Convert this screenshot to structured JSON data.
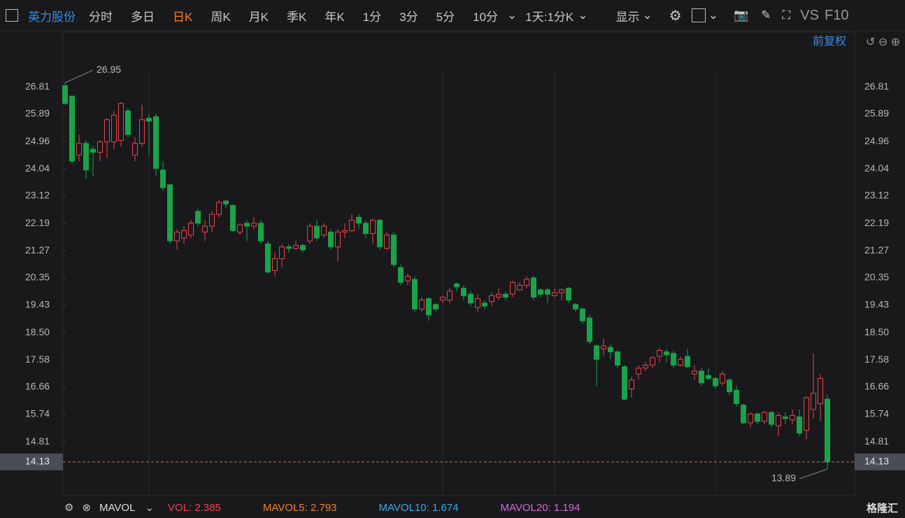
{
  "toolbar": {
    "stock": "英力股份",
    "tabs": [
      "分时",
      "多日",
      "日K",
      "周K",
      "月K",
      "季K",
      "年K",
      "1分",
      "3分",
      "5分",
      "10分"
    ],
    "active_tab": 2,
    "period": "1天:1分K",
    "display": "显示",
    "vs": "VS",
    "f10": "F10"
  },
  "adjust": "前复权",
  "indicator_bar": {
    "name": "MAVOL",
    "items": [
      {
        "text": "VOL: 2.385",
        "color": "#e8454a"
      },
      {
        "text": "MAVOL5: 2.793",
        "color": "#f0812b"
      },
      {
        "text": "MAVOL10: 1.674",
        "color": "#3aa8e6"
      },
      {
        "text": "MAVOL20: 1.194",
        "color": "#d36ad6"
      }
    ]
  },
  "logo": "格隆汇",
  "chart_data": {
    "type": "candlestick",
    "open": [
      26.85,
      26.5,
      24.5,
      24.9,
      24.7,
      24.6,
      24.95,
      24.95,
      25.0,
      26.0,
      24.5,
      24.9,
      25.75,
      25.8,
      24.0,
      23.5,
      21.6,
      21.7,
      21.8,
      22.6,
      21.9,
      22.1,
      22.5,
      22.95,
      22.8,
      21.9,
      22.2,
      22.1,
      22.2,
      21.5,
      20.6,
      21.0,
      21.4,
      21.35,
      21.45,
      21.6,
      22.1,
      21.8,
      21.9,
      21.4,
      21.9,
      21.95,
      22.4,
      22.2,
      21.85,
      22.3,
      21.35,
      21.8,
      20.7,
      20.25,
      20.3,
      19.3,
      19.65,
      19.45,
      19.6,
      19.6,
      20.15,
      20.0,
      19.8,
      19.35,
      19.5,
      19.55,
      19.7,
      19.8,
      19.8,
      19.95,
      20.1,
      20.35,
      19.95,
      19.95,
      19.75,
      19.85,
      20.0,
      19.45,
      19.3,
      19.0,
      18.05,
      17.95,
      18.0,
      17.85,
      17.35,
      16.6,
      17.1,
      17.3,
      17.4,
      17.7,
      17.85,
      17.8,
      17.4,
      17.7,
      17.1,
      17.2,
      17.05,
      16.95,
      16.8,
      16.9,
      16.55,
      16.05,
      15.45,
      15.75,
      15.5,
      15.8,
      15.35,
      15.65,
      15.55,
      15.65,
      15.2,
      15.9,
      16.1,
      16.25
    ],
    "high": [
      26.95,
      26.5,
      25.2,
      25.0,
      24.8,
      25.0,
      25.75,
      26.0,
      26.3,
      26.1,
      25.1,
      26.2,
      25.9,
      25.9,
      24.3,
      23.5,
      22.0,
      22.1,
      22.3,
      22.7,
      22.3,
      22.6,
      23.0,
      23.0,
      22.85,
      22.2,
      22.3,
      22.4,
      22.3,
      21.6,
      21.2,
      21.5,
      21.5,
      21.6,
      21.5,
      22.2,
      22.3,
      22.2,
      22.0,
      22.0,
      22.2,
      22.5,
      22.5,
      22.3,
      22.35,
      22.35,
      21.9,
      21.9,
      20.8,
      20.5,
      20.4,
      19.7,
      19.7,
      19.5,
      19.75,
      20.0,
      20.2,
      20.1,
      19.9,
      19.8,
      19.6,
      19.85,
      20.0,
      19.9,
      20.25,
      20.2,
      20.4,
      20.4,
      20.0,
      20.0,
      20.0,
      20.0,
      20.05,
      19.5,
      19.35,
      19.1,
      18.1,
      18.3,
      18.1,
      17.9,
      17.4,
      17.0,
      17.4,
      17.5,
      17.7,
      18.0,
      17.95,
      17.9,
      17.7,
      17.95,
      17.4,
      17.3,
      17.3,
      17.0,
      17.2,
      16.95,
      16.7,
      16.1,
      15.8,
      15.8,
      15.85,
      15.85,
      15.8,
      15.8,
      15.9,
      15.9,
      16.35,
      17.8,
      17.1,
      16.4
    ],
    "low": [
      26.2,
      24.2,
      24.3,
      23.7,
      23.8,
      24.3,
      24.4,
      24.7,
      24.8,
      25.1,
      24.3,
      24.8,
      24.5,
      23.8,
      23.3,
      21.5,
      21.3,
      21.5,
      21.7,
      22.1,
      21.6,
      21.9,
      22.4,
      22.7,
      21.9,
      21.8,
      21.6,
      22.0,
      21.5,
      20.5,
      20.4,
      20.7,
      21.2,
      21.3,
      21.2,
      21.5,
      21.6,
      21.7,
      21.3,
      20.9,
      21.7,
      21.9,
      22.0,
      21.7,
      21.5,
      21.3,
      21.3,
      20.7,
      20.1,
      20.1,
      19.2,
      19.2,
      18.9,
      19.2,
      19.5,
      19.5,
      19.9,
      19.6,
      19.4,
      19.2,
      19.3,
      19.4,
      19.6,
      19.6,
      19.7,
      19.9,
      20.0,
      19.6,
      19.7,
      19.5,
      19.7,
      19.6,
      19.5,
      19.2,
      18.8,
      18.1,
      16.7,
      17.7,
      17.6,
      17.3,
      16.2,
      16.3,
      16.9,
      17.2,
      17.3,
      17.5,
      17.5,
      17.3,
      17.35,
      17.3,
      16.9,
      16.7,
      16.9,
      16.6,
      16.7,
      16.4,
      16.0,
      15.4,
      15.3,
      15.4,
      15.4,
      15.3,
      15.0,
      15.4,
      15.4,
      15.0,
      14.9,
      15.6,
      15.5,
      13.89
    ],
    "close": [
      26.25,
      24.3,
      24.9,
      24.0,
      24.6,
      24.95,
      25.7,
      25.85,
      26.25,
      25.2,
      24.9,
      25.7,
      25.65,
      24.05,
      23.4,
      21.6,
      21.9,
      21.95,
      22.2,
      22.2,
      22.1,
      22.5,
      22.9,
      22.85,
      21.95,
      22.15,
      22.1,
      22.2,
      21.6,
      20.55,
      21.0,
      21.4,
      21.35,
      21.45,
      21.3,
      22.1,
      21.7,
      22.1,
      21.4,
      21.9,
      21.95,
      22.3,
      22.2,
      21.85,
      22.3,
      21.4,
      21.8,
      20.8,
      20.2,
      20.4,
      19.3,
      19.6,
      19.1,
      19.3,
      19.7,
      19.9,
      20.05,
      19.75,
      19.5,
      19.65,
      19.4,
      19.75,
      19.8,
      19.7,
      20.2,
      20.1,
      20.3,
      19.7,
      19.8,
      19.8,
      19.85,
      19.95,
      19.6,
      19.3,
      18.9,
      18.2,
      17.6,
      18.05,
      17.85,
      17.4,
      16.25,
      16.9,
      17.3,
      17.4,
      17.65,
      17.9,
      17.75,
      17.4,
      17.6,
      17.35,
      17.2,
      16.8,
      16.95,
      16.7,
      17.1,
      16.5,
      16.1,
      15.45,
      15.75,
      15.5,
      15.8,
      15.4,
      15.7,
      15.6,
      15.7,
      15.1,
      16.3,
      16.45,
      16.95,
      14.13
    ],
    "up_color": "#e8454a",
    "down_color": "#1aa34a",
    "ylim": [
      12.99,
      27.38
    ],
    "yticks": [
      26.81,
      25.89,
      24.96,
      24.04,
      23.12,
      22.19,
      21.27,
      20.35,
      19.43,
      {
        "value": 18.5,
        "label": "18.50"
      },
      17.58,
      16.66,
      15.74,
      14.81
    ],
    "last_price": 14.13,
    "grid": false
  }
}
